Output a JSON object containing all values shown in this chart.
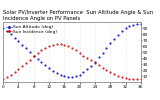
{
  "title": "Solar PV/Inverter Performance  Sun Altitude Angle & Sun Incidence Angle on PV Panels",
  "legend1": "Sun Altitude (deg)",
  "legend2": "Sun Incidence (deg)",
  "bg_color": "#ffffff",
  "plot_bg": "#ffffff",
  "grid_color": "#cccccc",
  "blue_color": "#0000cc",
  "red_color": "#cc0000",
  "x_values": [
    0,
    1,
    2,
    3,
    4,
    5,
    6,
    7,
    8,
    9,
    10,
    11,
    12,
    13,
    14,
    15,
    16,
    17,
    18,
    19,
    20,
    21,
    22,
    23,
    24,
    25,
    26,
    27,
    28,
    29,
    30,
    31,
    32,
    33,
    34,
    35,
    36
  ],
  "blue_y": [
    90,
    85,
    80,
    74,
    68,
    62,
    56,
    50,
    44,
    38,
    33,
    28,
    23,
    19,
    15,
    12,
    10,
    9,
    9,
    10,
    12,
    16,
    21,
    27,
    34,
    41,
    49,
    57,
    65,
    72,
    79,
    85,
    90,
    93,
    95,
    96,
    96
  ],
  "red_y": [
    5,
    8,
    12,
    16,
    21,
    26,
    32,
    37,
    43,
    48,
    53,
    57,
    60,
    62,
    63,
    63,
    62,
    60,
    57,
    53,
    48,
    44,
    40,
    36,
    32,
    28,
    24,
    20,
    16,
    13,
    10,
    8,
    6,
    5,
    5,
    5,
    5
  ],
  "xlim": [
    0,
    36
  ],
  "ylim": [
    0,
    100
  ],
  "yticks_right": [
    10,
    20,
    30,
    40,
    50,
    60,
    70,
    80,
    90
  ],
  "xtick_step": 4,
  "title_fontsize": 3.8,
  "tick_fontsize": 3.0,
  "legend_fontsize": 3.2,
  "linewidth": 0.7,
  "markersize": 1.0
}
